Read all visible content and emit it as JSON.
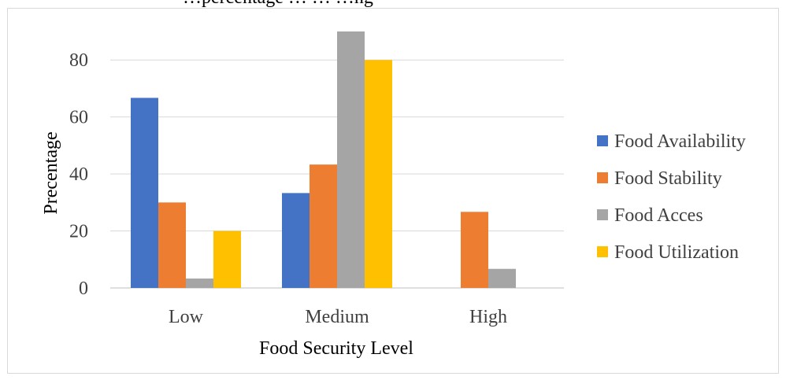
{
  "chart_data": {
    "type": "bar",
    "title": "…percentage … … …ng",
    "xlabel": "Food Security Level",
    "ylabel": "Precentage",
    "categories": [
      "Low",
      "Medium",
      "High"
    ],
    "ylim": [
      0,
      90
    ],
    "yticks": [
      0,
      20,
      40,
      60,
      80
    ],
    "grid": true,
    "legend_position": "right",
    "series": [
      {
        "name": "Food Availability",
        "color": "#4472c4",
        "values": [
          66.7,
          33.3,
          0
        ]
      },
      {
        "name": "Food Stability",
        "color": "#ed7d31",
        "values": [
          30,
          43.3,
          26.7
        ]
      },
      {
        "name": "Food Acces",
        "color": "#a5a5a5",
        "values": [
          3.3,
          90,
          6.7
        ]
      },
      {
        "name": "Food Utilization",
        "color": "#ffc000",
        "values": [
          20,
          80,
          0
        ]
      }
    ]
  }
}
